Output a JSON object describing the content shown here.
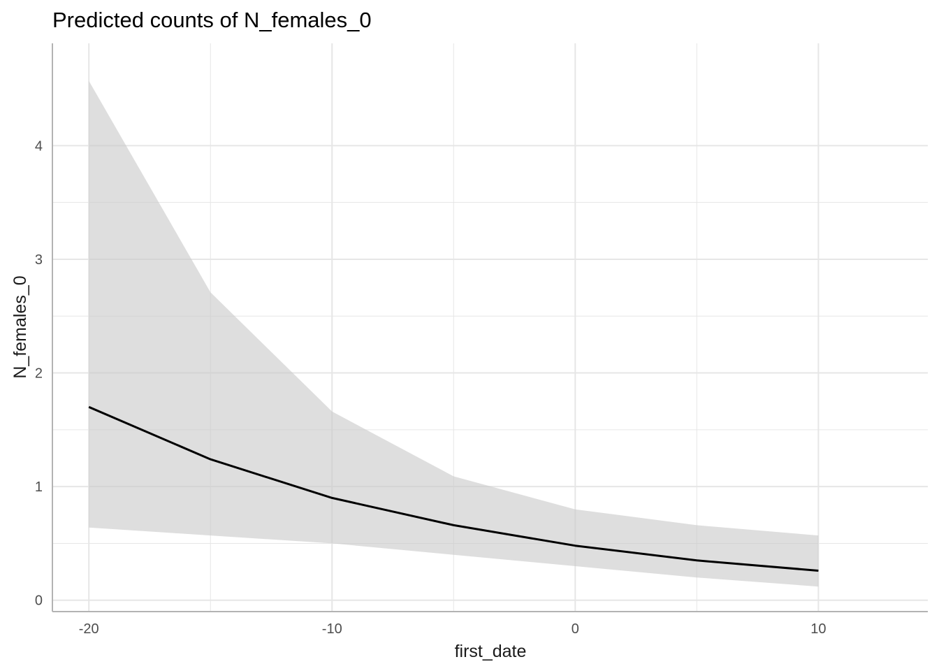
{
  "chart_data": {
    "type": "line",
    "title": "Predicted counts of N_females_0",
    "xlabel": "first_date",
    "ylabel": "N_females_0",
    "xlim": [
      -21.5,
      14.5
    ],
    "ylim": [
      -0.1,
      4.9
    ],
    "x_ticks": [
      -20,
      -10,
      0,
      10
    ],
    "x_tick_labels": [
      "-20",
      "-10",
      "0",
      "10"
    ],
    "y_ticks": [
      0,
      1,
      2,
      3,
      4
    ],
    "y_tick_labels": [
      "0",
      "1",
      "2",
      "3",
      "4"
    ],
    "grid": true,
    "x": [
      -20,
      -15,
      -10,
      -5,
      0,
      5,
      10
    ],
    "series": [
      {
        "values": [
          1.7,
          1.24,
          0.9,
          0.66,
          0.48,
          0.35,
          0.26
        ],
        "lower": [
          0.64,
          0.57,
          0.5,
          0.4,
          0.3,
          0.2,
          0.12
        ],
        "upper": [
          4.57,
          2.71,
          1.66,
          1.09,
          0.8,
          0.66,
          0.57
        ]
      }
    ],
    "colors": {
      "line": "#000000",
      "ribbon": "#c8c8c8",
      "grid": "#e6e6e6",
      "axis": "#b3b3b3"
    }
  }
}
